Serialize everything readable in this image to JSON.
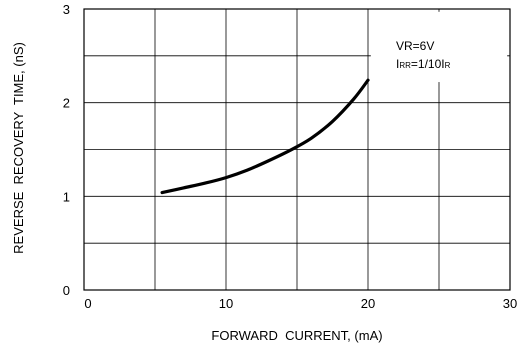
{
  "chart_data": {
    "type": "line",
    "title": "",
    "xlabel": "FORWARD  CURRENT, (mA)",
    "ylabel": "REVERSE  RECOVERY  TIME, (nS)",
    "xlim": [
      0,
      30
    ],
    "ylim": [
      0,
      3
    ],
    "x_major_ticks": [
      0,
      10,
      20,
      30
    ],
    "x_tick_labels": [
      "0",
      "10",
      "20",
      "30"
    ],
    "y_major_ticks": [
      0,
      1,
      2,
      3
    ],
    "y_tick_labels": [
      "0",
      "1",
      "2",
      "3"
    ],
    "x_minor_gridlines": [
      5,
      15,
      25
    ],
    "y_minor_gridlines": [
      0.5,
      1.5,
      2.5
    ],
    "grid": true,
    "line_color": "#000000",
    "grid_color": "#000000",
    "series": [
      {
        "x": [
          5.5,
          7,
          8.5,
          10,
          11.5,
          13,
          14.5,
          16,
          17.5,
          19,
          20
        ],
        "y": [
          1.04,
          1.09,
          1.14,
          1.2,
          1.28,
          1.38,
          1.49,
          1.62,
          1.8,
          2.04,
          2.24
        ]
      }
    ],
    "annotation": {
      "line1": "VR=6V",
      "line2_parts": [
        "I",
        "RR",
        "=1/10I",
        "R"
      ]
    }
  }
}
